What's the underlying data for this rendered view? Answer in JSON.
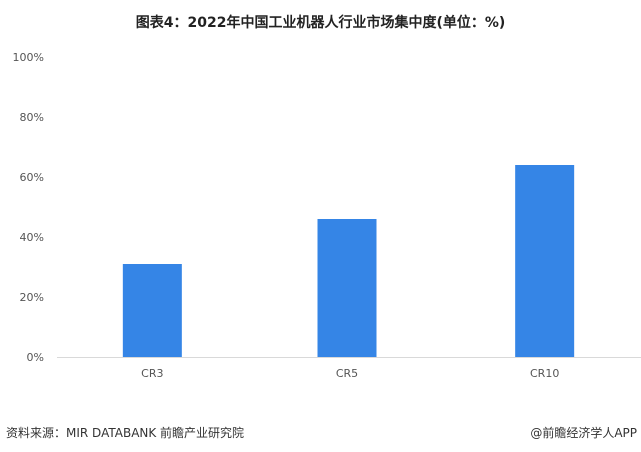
{
  "chart_data": {
    "type": "bar",
    "title": "图表4：2022年中国工业机器人行业市场集中度(单位：%)",
    "categories": [
      "CR3",
      "CR5",
      "CR10"
    ],
    "values": [
      31,
      46,
      64
    ],
    "ylim": [
      0,
      100
    ],
    "yticks": [
      "0%",
      "20%",
      "40%",
      "60%",
      "80%",
      "100%"
    ],
    "grid": false,
    "bar_color": "#3585e6"
  },
  "footer": {
    "source": "资料来源：MIR DATABANK 前瞻产业研究院",
    "credit": "@前瞻经济学人APP"
  },
  "watermark": "前瞻产业研究院"
}
